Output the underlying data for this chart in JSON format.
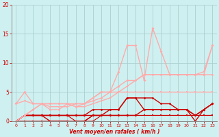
{
  "background_color": "#cff0f0",
  "grid_color": "#aacece",
  "xlim": [
    -0.5,
    23.5
  ],
  "ylim": [
    0,
    20
  ],
  "xticks": [
    0,
    1,
    2,
    3,
    4,
    5,
    6,
    7,
    8,
    9,
    10,
    11,
    12,
    13,
    14,
    15,
    16,
    17,
    18,
    19,
    20,
    21,
    22,
    23
  ],
  "yticks": [
    0,
    5,
    10,
    15,
    20
  ],
  "xlabel": "Vent moyen/en rafales ( km/h )",
  "xlabel_color": "#cc0000",
  "tick_color": "#cc0000",
  "lines": [
    {
      "x": [
        0,
        1,
        2,
        3,
        4,
        5,
        6,
        7,
        8,
        9,
        10,
        11,
        12,
        13,
        14,
        15,
        16,
        17,
        18,
        19,
        20,
        21,
        22,
        23
      ],
      "y": [
        0,
        0,
        0,
        0,
        0,
        0,
        0,
        0,
        0,
        0,
        1,
        1,
        1,
        1,
        1,
        1,
        1,
        1,
        1,
        1,
        1,
        1,
        1,
        1
      ],
      "color": "#cc0000",
      "marker": "s",
      "markersize": 1.5,
      "linewidth": 0.8,
      "alpha": 1.0
    },
    {
      "x": [
        0,
        1,
        2,
        3,
        4,
        5,
        6,
        7,
        8,
        9,
        10,
        11,
        12,
        13,
        14,
        15,
        16,
        17,
        18,
        19,
        20,
        21,
        22,
        23
      ],
      "y": [
        0,
        1,
        1,
        1,
        1,
        1,
        1,
        0,
        0,
        1,
        1,
        1,
        1,
        1,
        1,
        1,
        1,
        1,
        1,
        1,
        1,
        1,
        1,
        1
      ],
      "color": "#cc0000",
      "marker": "s",
      "markersize": 1.5,
      "linewidth": 0.8,
      "alpha": 1.0
    },
    {
      "x": [
        0,
        1,
        2,
        3,
        4,
        5,
        6,
        7,
        8,
        9,
        10,
        11,
        12,
        13,
        14,
        15,
        16,
        17,
        18,
        19,
        20,
        21,
        22,
        23
      ],
      "y": [
        0,
        1,
        1,
        1,
        1,
        1,
        1,
        1,
        1,
        1,
        1,
        1,
        1,
        1,
        1,
        2,
        2,
        2,
        2,
        2,
        2,
        1,
        2,
        3
      ],
      "color": "#cc0000",
      "marker": "D",
      "markersize": 2,
      "linewidth": 1.0,
      "alpha": 1.0
    },
    {
      "x": [
        0,
        1,
        2,
        3,
        4,
        5,
        6,
        7,
        8,
        9,
        10,
        11,
        12,
        13,
        14,
        15,
        16,
        17,
        18,
        19,
        20,
        21,
        22,
        23
      ],
      "y": [
        0,
        1,
        1,
        1,
        0,
        0,
        0,
        -0.3,
        0,
        1,
        1,
        2,
        2,
        4,
        4,
        2,
        2,
        2,
        2,
        2,
        2,
        0,
        2,
        3
      ],
      "color": "#cc0000",
      "marker": "v",
      "markersize": 2,
      "linewidth": 1.0,
      "alpha": 1.0
    },
    {
      "x": [
        0,
        1,
        2,
        3,
        4,
        5,
        6,
        7,
        8,
        9,
        10,
        11,
        12,
        13,
        14,
        15,
        16,
        17,
        18,
        19,
        20,
        21,
        22,
        23
      ],
      "y": [
        0,
        1,
        1,
        1,
        1,
        1,
        1,
        1,
        1,
        2,
        2,
        2,
        2,
        4,
        4,
        4,
        4,
        3,
        3,
        2,
        2,
        1,
        2,
        3
      ],
      "color": "#cc0000",
      "marker": "o",
      "markersize": 2,
      "linewidth": 1.0,
      "alpha": 1.0
    },
    {
      "x": [
        0,
        1,
        2,
        3,
        4,
        5,
        6,
        7,
        8,
        9,
        10,
        11,
        12,
        13,
        14,
        15,
        16,
        17,
        18,
        19,
        20,
        21,
        22,
        23
      ],
      "y": [
        3,
        5,
        3,
        3,
        3,
        3,
        3,
        2.5,
        3,
        3.5,
        4,
        5,
        8.5,
        13,
        13,
        7,
        16,
        12,
        8,
        8,
        8,
        8,
        8,
        13
      ],
      "color": "#ffaaaa",
      "marker": "D",
      "markersize": 2,
      "linewidth": 1.0,
      "alpha": 1.0
    },
    {
      "x": [
        0,
        1,
        2,
        3,
        4,
        5,
        6,
        7,
        8,
        9,
        10,
        11,
        12,
        13,
        14,
        15,
        16,
        17,
        18,
        19,
        20,
        21,
        22,
        23
      ],
      "y": [
        0,
        1,
        2,
        3,
        2.5,
        2.5,
        2.5,
        3,
        3,
        4,
        5,
        5,
        5,
        5,
        5,
        5,
        5,
        5,
        5,
        5,
        5,
        5,
        5,
        5
      ],
      "color": "#ffaaaa",
      "marker": "s",
      "markersize": 2,
      "linewidth": 1.0,
      "alpha": 1.0
    },
    {
      "x": [
        0,
        1,
        2,
        3,
        4,
        5,
        6,
        7,
        8,
        9,
        10,
        11,
        12,
        13,
        14,
        15,
        16,
        17,
        18,
        19,
        20,
        21,
        22,
        23
      ],
      "y": [
        0,
        1,
        2,
        3,
        2,
        2,
        3,
        3,
        3,
        4,
        5,
        5,
        6,
        7,
        7,
        8,
        8,
        8,
        8,
        8,
        8,
        8,
        8,
        8
      ],
      "color": "#ffaaaa",
      "marker": "o",
      "markersize": 2,
      "linewidth": 1.0,
      "alpha": 1.0
    },
    {
      "x": [
        0,
        1,
        2,
        3,
        4,
        5,
        6,
        7,
        8,
        9,
        10,
        11,
        12,
        13,
        14,
        15,
        16,
        17,
        18,
        19,
        20,
        21,
        22,
        23
      ],
      "y": [
        3,
        3.5,
        3,
        3,
        3,
        3,
        3,
        2.5,
        2.5,
        3,
        3.5,
        4,
        5,
        6,
        7,
        8,
        8,
        8,
        8,
        8,
        8,
        8,
        8.5,
        13
      ],
      "color": "#ffaaaa",
      "marker": "v",
      "markersize": 2,
      "linewidth": 1.0,
      "alpha": 1.0
    }
  ],
  "figsize": [
    3.2,
    2.0
  ],
  "dpi": 100
}
